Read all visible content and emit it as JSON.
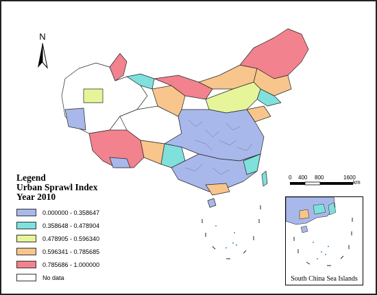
{
  "north_arrow": {
    "label": "N"
  },
  "legend": {
    "heading_1": "Legend",
    "heading_2": "Urban Sprawl Index",
    "heading_3": "Year 2010",
    "classes": [
      {
        "label": "0.000000 - 0.358647",
        "color": "#a9b8ea"
      },
      {
        "label": "0.358648 - 0.478904",
        "color": "#7fe0dc"
      },
      {
        "label": "0.478905 - 0.596340",
        "color": "#e6f59a"
      },
      {
        "label": "0.596341 - 0.785685",
        "color": "#f8c58c"
      },
      {
        "label": "0.785686 - 1.000000",
        "color": "#f2828e"
      },
      {
        "label": "No data",
        "color": "#ffffff"
      }
    ]
  },
  "scale_bar": {
    "ticks": [
      "0",
      "400",
      "800",
      "1600"
    ],
    "unit": "km"
  },
  "inset": {
    "caption": "South China Sea Islands"
  },
  "map_regions": [
    {
      "region": "northeast",
      "color": "#f2828e"
    },
    {
      "region": "inner-mongolia-north",
      "color": "#f8c58c"
    },
    {
      "region": "inner-mongolia-west",
      "color": "#f2828e"
    },
    {
      "region": "xinjiang-north",
      "color": "#f2828e"
    },
    {
      "region": "xinjiang-east",
      "color": "#7fe0dc"
    },
    {
      "region": "xinjiang-south",
      "color": "#a9b8ea"
    },
    {
      "region": "tibet",
      "color": "#f2828e"
    },
    {
      "region": "qinghai",
      "color": "#ffffff"
    },
    {
      "region": "gansu",
      "color": "#f8c58c"
    },
    {
      "region": "central-china",
      "color": "#a9b8ea"
    },
    {
      "region": "south-china",
      "color": "#a9b8ea"
    }
  ]
}
